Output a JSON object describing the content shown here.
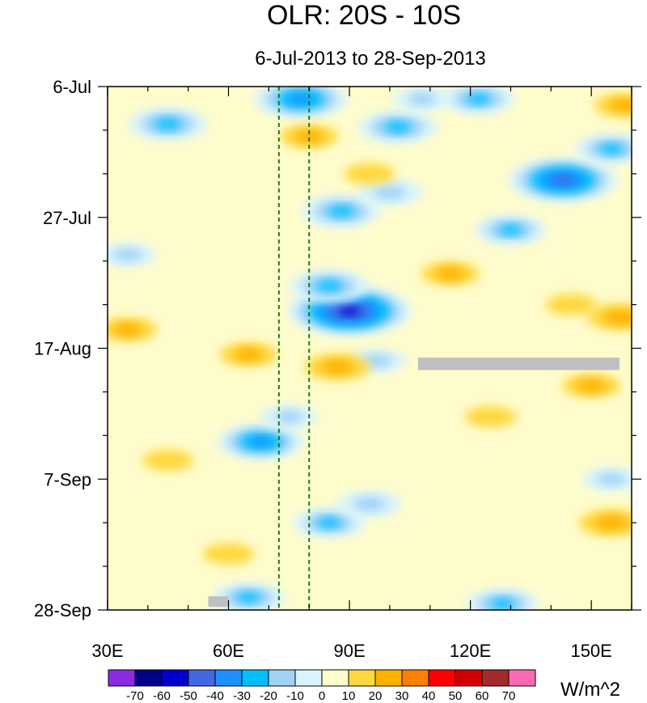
{
  "chart_data": {
    "type": "heatmap",
    "title": "OLR: 20S - 10S",
    "subtitle": "6-Jul-2013 to 28-Sep-2013",
    "x_range": [
      30,
      160
    ],
    "x_ticks": [
      {
        "value": 30,
        "label": "30E"
      },
      {
        "value": 60,
        "label": "60E"
      },
      {
        "value": 90,
        "label": "90E"
      },
      {
        "value": 120,
        "label": "120E"
      },
      {
        "value": 150,
        "label": "150E"
      }
    ],
    "y_range_days": [
      0,
      84
    ],
    "y_ticks": [
      {
        "value": 0,
        "label": "6-Jul"
      },
      {
        "value": 21,
        "label": "27-Jul"
      },
      {
        "value": 42,
        "label": "17-Aug"
      },
      {
        "value": 63,
        "label": "7-Sep"
      },
      {
        "value": 84,
        "label": "28-Sep"
      }
    ],
    "reference_lines_lon": [
      72.5,
      80
    ],
    "colorbar": {
      "unit": "W/m^2",
      "labels": [
        "-70",
        "-60",
        "-50",
        "-40",
        "-30",
        "-20",
        "-10",
        "0",
        "10",
        "20",
        "30",
        "40",
        "50",
        "60",
        "70"
      ],
      "colors": [
        "#8a2be2",
        "#00008b",
        "#0000cd",
        "#4169e1",
        "#1e90ff",
        "#00bfff",
        "#a0d2f8",
        "#d8f4fc",
        "#fffccc",
        "#ffd840",
        "#ffb000",
        "#ff7f00",
        "#ff0000",
        "#d00000",
        "#a52a2a",
        "#ff69b4"
      ]
    },
    "anomalies": [
      {
        "lon": 102,
        "day": 6.5,
        "value": -35
      },
      {
        "lon": 143,
        "day": 15,
        "value": -55
      },
      {
        "lon": 155,
        "day": 10,
        "value": -30
      },
      {
        "lon": 108,
        "day": 2,
        "value": -20
      },
      {
        "lon": 122,
        "day": 2,
        "value": -30
      },
      {
        "lon": 78,
        "day": 2,
        "value": -45
      },
      {
        "lon": 45,
        "day": 6,
        "value": -35
      },
      {
        "lon": 88,
        "day": 20,
        "value": -35
      },
      {
        "lon": 100,
        "day": 17,
        "value": -25
      },
      {
        "lon": 130,
        "day": 23,
        "value": -30
      },
      {
        "lon": 35,
        "day": 27,
        "value": -20
      },
      {
        "lon": 90,
        "day": 36,
        "value": -65
      },
      {
        "lon": 85,
        "day": 32,
        "value": -35
      },
      {
        "lon": 97,
        "day": 44,
        "value": -20
      },
      {
        "lon": 68,
        "day": 57,
        "value": -40
      },
      {
        "lon": 75,
        "day": 53,
        "value": -20
      },
      {
        "lon": 85,
        "day": 70,
        "value": -30
      },
      {
        "lon": 95,
        "day": 67,
        "value": -25
      },
      {
        "lon": 65,
        "day": 82,
        "value": -30
      },
      {
        "lon": 128,
        "day": 83,
        "value": -30
      },
      {
        "lon": 155,
        "day": 63,
        "value": -20
      },
      {
        "lon": 65,
        "day": 43,
        "value": 20
      },
      {
        "lon": 87,
        "day": 45,
        "value": 25
      },
      {
        "lon": 80,
        "day": 8,
        "value": 20
      },
      {
        "lon": 95,
        "day": 14,
        "value": 15
      },
      {
        "lon": 158,
        "day": 3,
        "value": 20
      },
      {
        "lon": 157,
        "day": 37,
        "value": 25
      },
      {
        "lon": 145,
        "day": 35,
        "value": 15
      },
      {
        "lon": 150,
        "day": 48,
        "value": 20
      },
      {
        "lon": 35,
        "day": 39,
        "value": 20
      },
      {
        "lon": 155,
        "day": 70,
        "value": 25
      },
      {
        "lon": 60,
        "day": 75,
        "value": 15
      },
      {
        "lon": 115,
        "day": 30,
        "value": 20
      },
      {
        "lon": 45,
        "day": 60,
        "value": 15
      },
      {
        "lon": 125,
        "day": 53,
        "value": 15
      }
    ],
    "missing": [
      {
        "lon_range": [
          107,
          157
        ],
        "day_range": [
          43.5,
          45.5
        ]
      },
      {
        "lon_range": [
          55,
          60
        ],
        "day_range": [
          81.8,
          83.5
        ]
      }
    ]
  }
}
